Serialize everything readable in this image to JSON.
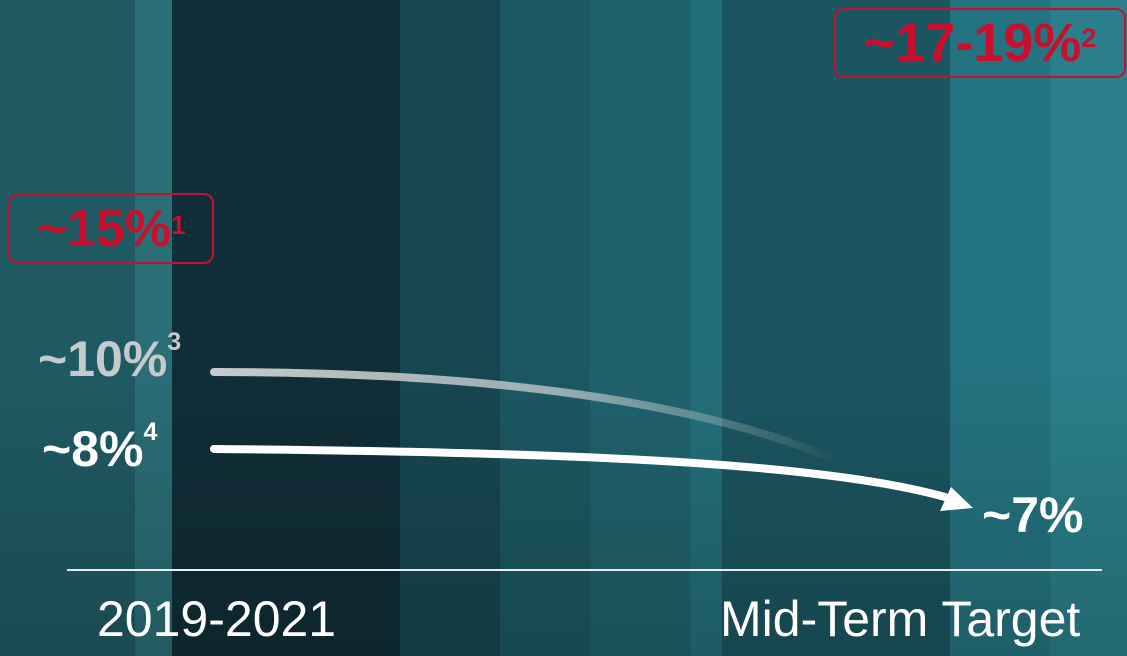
{
  "values": {
    "target_2019_2021": {
      "main": "~15%",
      "note": "1"
    },
    "target_midterm": {
      "main": "~17-19%",
      "note": "2"
    },
    "series_a_start": {
      "main": "~10%",
      "note": "3"
    },
    "series_b_start": {
      "main": "~8%",
      "note": "4"
    },
    "end_value": {
      "main": "~7%"
    }
  },
  "periods": {
    "start": "2019-2021",
    "end": "Mid-Term Target"
  },
  "colors": {
    "accent_red": "#c8102e",
    "grey_text": "#c5cbcd",
    "white": "#ffffff"
  }
}
